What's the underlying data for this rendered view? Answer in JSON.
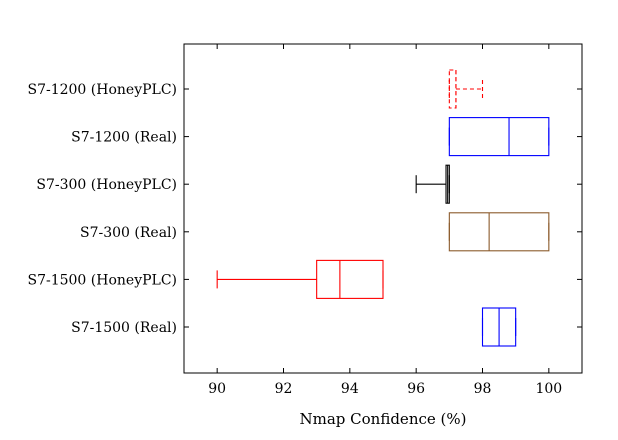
{
  "chart_data": {
    "type": "boxplot",
    "orientation": "horizontal",
    "xlabel": "Nmap Confidence (%)",
    "xlim": [
      89,
      101
    ],
    "xticks": [
      90,
      92,
      94,
      96,
      98,
      100
    ],
    "categories": [
      "S7-1200 (HoneyPLC)",
      "S7-1200 (Real)",
      "S7-300 (HoneyPLC)",
      "S7-300 (Real)",
      "S7-1500 (HoneyPLC)",
      "S7-1500 (Real)"
    ],
    "boxes": [
      {
        "label": "S7-1200 (HoneyPLC)",
        "whisker_low": 97,
        "q1": 97,
        "median": 97.2,
        "q3": 97.2,
        "whisker_high": 98,
        "color": "#ff0000",
        "dashed": true
      },
      {
        "label": "S7-1200 (Real)",
        "whisker_low": 97,
        "q1": 97,
        "median": 98.8,
        "q3": 100,
        "whisker_high": 100,
        "color": "#0000ff",
        "dashed": false
      },
      {
        "label": "S7-300 (HoneyPLC)",
        "whisker_low": 96,
        "q1": 96.9,
        "median": 96.95,
        "q3": 97,
        "whisker_high": 97,
        "color": "#000000",
        "dashed": false
      },
      {
        "label": "S7-300 (Real)",
        "whisker_low": 97,
        "q1": 97,
        "median": 98.2,
        "q3": 100,
        "whisker_high": 100,
        "color": "#8b5a2b",
        "dashed": false
      },
      {
        "label": "S7-1500 (HoneyPLC)",
        "whisker_low": 90,
        "q1": 93,
        "median": 93.7,
        "q3": 95,
        "whisker_high": 95,
        "color": "#ff0000",
        "dashed": false
      },
      {
        "label": "S7-1500 (Real)",
        "whisker_low": 98,
        "q1": 98,
        "median": 98.5,
        "q3": 99,
        "whisker_high": 99,
        "color": "#0000ff",
        "dashed": false
      }
    ],
    "grid": false,
    "legend": "none"
  }
}
